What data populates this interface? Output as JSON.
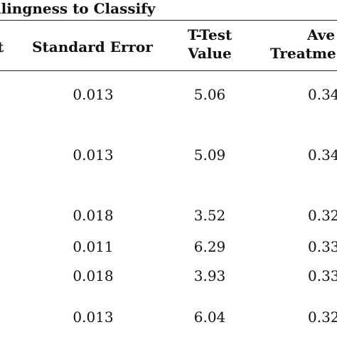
{
  "title": "llingness to Classify",
  "header_stub": "t",
  "columns": {
    "standard_error": "Standard Error",
    "t_test_line1": "T-Test",
    "t_test_line2": "Value",
    "ate_line1": "Ave",
    "ate_line2": "Treatme"
  },
  "rows": [
    {
      "standard_error": "0.013",
      "t_test": "5.06",
      "ate": "0.34"
    },
    {
      "standard_error": "0.013",
      "t_test": "5.09",
      "ate": "0.34"
    },
    {
      "standard_error": "0.018",
      "t_test": "3.52",
      "ate": "0.32"
    },
    {
      "standard_error": "0.011",
      "t_test": "6.29",
      "ate": "0.33"
    },
    {
      "standard_error": "0.018",
      "t_test": "3.93",
      "ate": "0.33"
    },
    {
      "standard_error": "0.013",
      "t_test": "6.04",
      "ate": "0.32"
    }
  ]
}
